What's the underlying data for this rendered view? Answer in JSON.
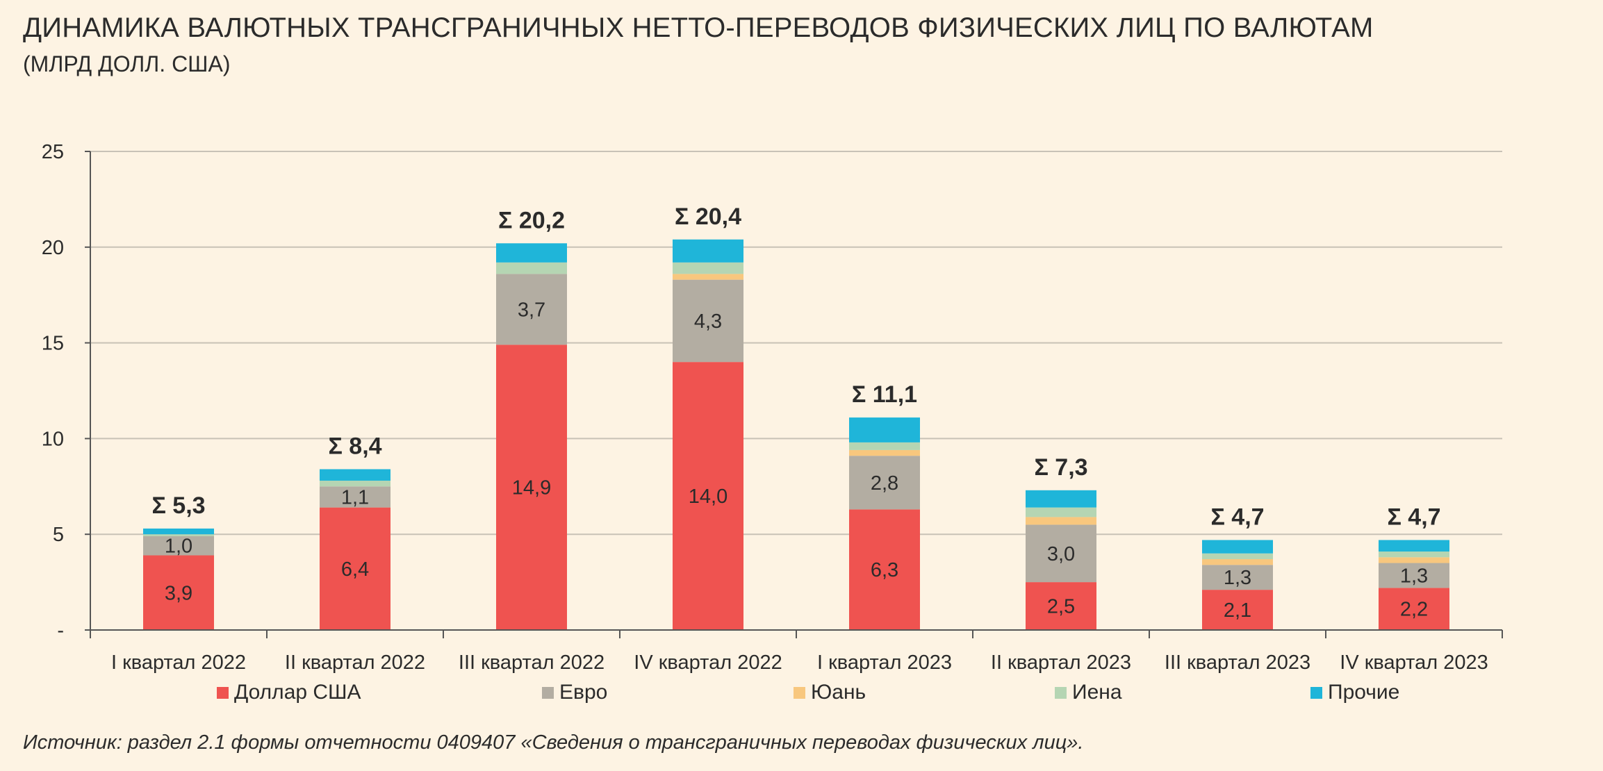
{
  "header": {
    "title": "ДИНАМИКА ВАЛЮТНЫХ ТРАНСГРАНИЧНЫХ НЕТТО-ПЕРЕВОДОВ ФИЗИЧЕСКИХ ЛИЦ ПО ВАЛЮТАМ",
    "subtitle": "(МЛРД ДОЛЛ. США)"
  },
  "footer": {
    "source": "Источник: раздел 2.1 формы отчетности 0409407 «Сведения о трансграничных переводах физических лиц»."
  },
  "chart_data": {
    "type": "bar",
    "stacked": true,
    "categories": [
      "I квартал 2022",
      "II квартал 2022",
      "III квартал 2022",
      "IV квартал 2022",
      "I квартал 2023",
      "II квартал 2023",
      "III квартал 2023",
      "IV квартал 2023"
    ],
    "ylim": [
      0,
      25
    ],
    "yticks": [
      0,
      5,
      10,
      15,
      20,
      25
    ],
    "ytick_labels": [
      "-",
      "5",
      "10",
      "15",
      "20",
      "25"
    ],
    "grid": true,
    "legend_position": "bottom",
    "series": [
      {
        "name": "Доллар США",
        "color": "#ef5350",
        "values": [
          3.9,
          6.4,
          14.9,
          14.0,
          6.3,
          2.5,
          2.1,
          2.2
        ],
        "labels": [
          "3,9",
          "6,4",
          "14,9",
          "14,0",
          "6,3",
          "2,5",
          "2,1",
          "2,2"
        ]
      },
      {
        "name": "Евро",
        "color": "#b3ada2",
        "values": [
          1.0,
          1.1,
          3.7,
          4.3,
          2.8,
          3.0,
          1.3,
          1.3
        ],
        "labels": [
          "1,0",
          "1,1",
          "3,7",
          "4,3",
          "2,8",
          "3,0",
          "1,3",
          "1,3"
        ]
      },
      {
        "name": "Юань",
        "color": "#f8c77e",
        "values": [
          0.0,
          0.0,
          0.0,
          0.3,
          0.3,
          0.4,
          0.3,
          0.3
        ],
        "labels": []
      },
      {
        "name": "Иена",
        "color": "#b5d5b3",
        "values": [
          0.1,
          0.3,
          0.6,
          0.6,
          0.4,
          0.5,
          0.3,
          0.3
        ],
        "labels": []
      },
      {
        "name": "Прочие",
        "color": "#1fb5d9",
        "values": [
          0.3,
          0.6,
          1.0,
          1.2,
          1.3,
          0.9,
          0.7,
          0.6
        ],
        "labels": []
      }
    ],
    "totals": [
      5.3,
      8.4,
      20.2,
      20.4,
      11.1,
      7.3,
      4.7,
      4.7
    ],
    "total_labels": [
      "Σ 5,3",
      "Σ 8,4",
      "Σ 20,2",
      "Σ 20,4",
      "Σ 11,1",
      "Σ 7,3",
      "Σ 4,7",
      "Σ 4,7"
    ]
  }
}
